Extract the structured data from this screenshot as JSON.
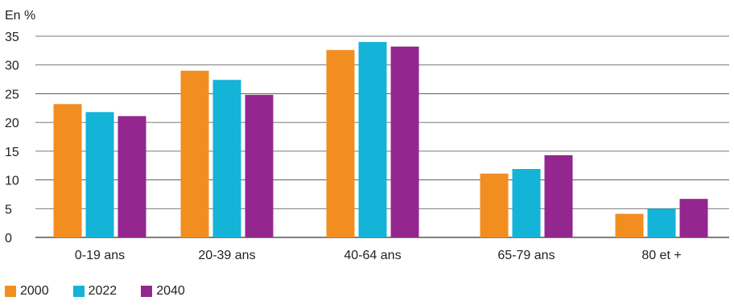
{
  "chart_data": {
    "type": "bar",
    "unit_label": "En %",
    "categories": [
      "0-19 ans",
      "20-39 ans",
      "40-64 ans",
      "65-79 ans",
      "80 et +"
    ],
    "series": [
      {
        "name": "2000",
        "color": "#f28e20",
        "values": [
          23.2,
          29.0,
          32.6,
          11.1,
          4.1
        ]
      },
      {
        "name": "2022",
        "color": "#14b3d8",
        "values": [
          21.8,
          27.4,
          34.0,
          11.9,
          5.0
        ]
      },
      {
        "name": "2040",
        "color": "#93278f",
        "values": [
          21.1,
          24.8,
          33.2,
          14.3,
          6.7
        ]
      }
    ],
    "ylim": [
      0,
      35
    ],
    "yticks": [
      "0",
      "5",
      "10",
      "15",
      "20",
      "25",
      "30",
      "35"
    ],
    "grid": true,
    "legend_position": "bottom-left"
  }
}
